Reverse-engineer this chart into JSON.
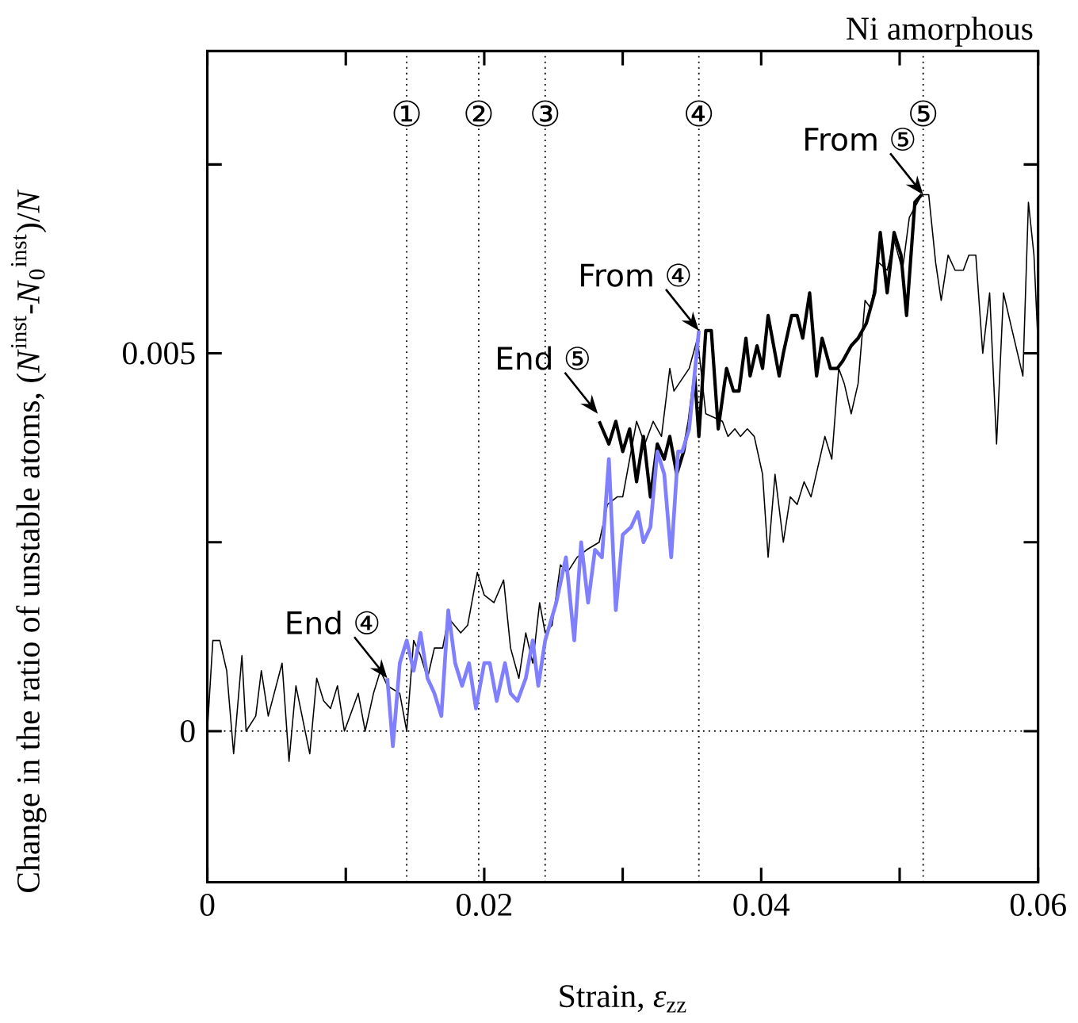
{
  "chart_data": {
    "type": "line",
    "xlabel": "Strain,   *ε*$_{zz}$",
    "ylabel": "Change in the ratio of unstable atoms,   (*N*$^{inst}$-*N*$_{0}$$^{inst}$)/*N*",
    "xlim": [
      0,
      0.06
    ],
    "ylim": [
      -0.002,
      0.009
    ],
    "xticks": [
      0,
      {
        "value": 0.01,
        "label": null
      },
      0.02,
      {
        "value": 0.03,
        "label": null
      },
      0.04,
      {
        "value": 0.05,
        "label": null
      },
      0.06
    ],
    "yticks": [
      0,
      {
        "value": 0.0025,
        "label": null
      },
      0.005,
      {
        "value": 0.0075,
        "label": null
      }
    ],
    "series": [
      {
        "color": "#000000",
        "x": [
          0,
          0.0004,
          0.0009,
          0.0014,
          0.0019,
          0.0025,
          0.0028,
          0.0035,
          0.0039,
          0.0044,
          0.0054,
          0.0059,
          0.0064,
          0.0074,
          0.0079,
          0.0084,
          0.0089,
          0.0094,
          0.0099,
          0.0109,
          0.0114,
          0.012,
          0.0125,
          0.013,
          0.0139,
          0.0144,
          0.0149,
          0.0154,
          0.0159,
          0.0164,
          0.017,
          0.0174,
          0.0183,
          0.0188,
          0.0195,
          0.02,
          0.0207,
          0.0214,
          0.0219,
          0.0225,
          0.023,
          0.0235,
          0.024,
          0.0244,
          0.0249,
          0.0255,
          0.026,
          0.0267,
          0.0274,
          0.0283,
          0.0289,
          0.0296,
          0.03,
          0.031,
          0.0316,
          0.0322,
          0.0328,
          0.0334,
          0.0337,
          0.0348,
          0.0354,
          0.036,
          0.0372,
          0.0376,
          0.0381,
          0.0385,
          0.039,
          0.0395,
          0.0401,
          0.0405,
          0.041,
          0.0416,
          0.0421,
          0.0426,
          0.0431,
          0.0436,
          0.0446,
          0.0451,
          0.0456,
          0.046,
          0.0465,
          0.047,
          0.0475,
          0.0479,
          0.0485,
          0.0491,
          0.0496,
          0.0502,
          0.0507,
          0.0516,
          0.0521,
          0.0526,
          0.053,
          0.0535,
          0.054,
          0.0546,
          0.055,
          0.0555,
          0.056,
          0.0565,
          0.057,
          0.0575,
          0.058,
          0.0589,
          0.0593,
          0.0597,
          0.06
        ],
        "values": [
          0,
          0.0012,
          0.0012,
          0.0008,
          -0.0003,
          0.001,
          0,
          0.0002,
          0.0008,
          0.0002,
          0.0009,
          -0.0004,
          0.0006,
          -0.0003,
          0.0007,
          0.0004,
          0.0003,
          0.0006,
          0,
          0.0005,
          0,
          0.0005,
          0.0008,
          0.0006,
          0.0005,
          0,
          0.0012,
          0.001,
          0.0007,
          0.0011,
          0.0011,
          0.0015,
          0.0013,
          0.0014,
          0.0021,
          0.0018,
          0.0017,
          0.002,
          0.0011,
          0.0007,
          0.0013,
          0.0009,
          0.0017,
          0.0013,
          0.0014,
          0.0022,
          0.0021,
          0.0023,
          0.0024,
          0.0025,
          0.003,
          0.0031,
          0.0031,
          0.0041,
          0.0038,
          0.0041,
          0.0039,
          0.0048,
          0.0045,
          0.0048,
          0.0052,
          0.0042,
          0.0041,
          0.0039,
          0.004,
          0.0039,
          0.004,
          0.0039,
          0.0034,
          0.0023,
          0.0034,
          0.0025,
          0.0031,
          0.003,
          0.0033,
          0.0031,
          0.0039,
          0.0036,
          0.0048,
          0.0046,
          0.0042,
          0.0046,
          0.0057,
          0.0056,
          0.0062,
          0.0061,
          0.0065,
          0.0061,
          0.0068,
          0.0071,
          0.0071,
          0.0062,
          0.0057,
          0.0063,
          0.0061,
          0.0061,
          0.0063,
          0.0063,
          0.005,
          0.0058,
          0.0038,
          0.0058,
          0.0054,
          0.0047,
          0.007,
          0.0063,
          0.0051
        ]
      },
      {
        "color": "#000000",
        "x": [
          0.0283,
          0.029,
          0.0295,
          0.03,
          0.0305,
          0.031,
          0.0315,
          0.032,
          0.0325,
          0.033,
          0.0334,
          0.0339,
          0.0344,
          0.0348,
          0.0352,
          0.0355,
          0.036,
          0.0364,
          0.0369,
          0.0375,
          0.038,
          0.0384,
          0.0389,
          0.0392,
          0.0397,
          0.0401,
          0.0405,
          0.0413,
          0.0416,
          0.0422,
          0.0426,
          0.043,
          0.0435,
          0.044,
          0.0444,
          0.045,
          0.0455,
          0.0459,
          0.0465,
          0.047,
          0.0476,
          0.0482,
          0.0486,
          0.0491,
          0.0496,
          0.0501,
          0.0505,
          0.0511,
          0.0516
        ],
        "values": [
          0.0041,
          0.0038,
          0.0041,
          0.0037,
          0.004,
          0.0033,
          0.0039,
          0.0031,
          0.0038,
          0.0036,
          0.0039,
          0.0034,
          0.0037,
          0.0041,
          0.0047,
          0.0039,
          0.0053,
          0.0053,
          0.004,
          0.0048,
          0.0045,
          0.0045,
          0.0052,
          0.0047,
          0.0051,
          0.0048,
          0.0055,
          0.0047,
          0.005,
          0.0055,
          0.0055,
          0.0052,
          0.0058,
          0.0047,
          0.0052,
          0.0048,
          0.0048,
          0.0049,
          0.0051,
          0.0052,
          0.0054,
          0.0058,
          0.0066,
          0.0058,
          0.0066,
          0.0063,
          0.0055,
          0.007,
          0.0071
        ]
      },
      {
        "color": "#8080ff",
        "x": [
          0.013,
          0.0134,
          0.0139,
          0.0144,
          0.0149,
          0.0154,
          0.0159,
          0.0164,
          0.0169,
          0.0174,
          0.0179,
          0.0184,
          0.0189,
          0.0194,
          0.02,
          0.0204,
          0.0209,
          0.0215,
          0.0219,
          0.0224,
          0.023,
          0.0235,
          0.0239,
          0.0244,
          0.0252,
          0.0259,
          0.0265,
          0.027,
          0.0275,
          0.028,
          0.0285,
          0.029,
          0.0295,
          0.03,
          0.0306,
          0.0311,
          0.0315,
          0.032,
          0.0325,
          0.033,
          0.0335,
          0.034,
          0.0343,
          0.0348,
          0.0355
        ],
        "values": [
          0.0007,
          -0.0002,
          0.0009,
          0.0012,
          0.0008,
          0.0013,
          0.0007,
          0.0005,
          0.0002,
          0.0016,
          0.0009,
          0.0006,
          0.0009,
          0.0003,
          0.0009,
          0.0009,
          0.0004,
          0.0009,
          0.0005,
          0.0004,
          0.0007,
          0.0012,
          0.0006,
          0.0012,
          0.0017,
          0.0023,
          0.0012,
          0.0025,
          0.0017,
          0.0024,
          0.0023,
          0.0036,
          0.0016,
          0.0026,
          0.0027,
          0.0029,
          0.0025,
          0.0027,
          0.0037,
          0.0034,
          0.0023,
          0.0037,
          0.0037,
          0.004,
          0.0053
        ]
      }
    ],
    "ref_lines": [
      {
        "axis": "x",
        "value": 0.0144,
        "label": "①",
        "line_style": "dotted",
        "color": "#000000"
      },
      {
        "axis": "x",
        "value": 0.0196,
        "label": "②",
        "line_style": "dotted",
        "color": "#000000"
      },
      {
        "axis": "x",
        "value": 0.0244,
        "label": "③",
        "line_style": "dotted",
        "color": "#000000"
      },
      {
        "axis": "x",
        "value": 0.0355,
        "label": "④",
        "line_style": "dotted",
        "color": "#000000"
      },
      {
        "axis": "x",
        "value": 0.0517,
        "label": "⑤",
        "line_style": "dotted",
        "color": "#000000"
      },
      {
        "axis": "y",
        "value": 0,
        "line_style": "dotted",
        "color": "#000000"
      }
    ],
    "annotations": [
      "Ni amorphous",
      {
        "text": "End ④",
        "x": 0.013,
        "y": 0.0007
      },
      {
        "text": "End ⑤",
        "x": 0.0282,
        "y": 0.0042
      },
      {
        "text": "From ④",
        "x": 0.0355,
        "y": 0.0053
      },
      {
        "text": "From ⑤",
        "x": 0.0517,
        "y": 0.0071
      }
    ]
  }
}
